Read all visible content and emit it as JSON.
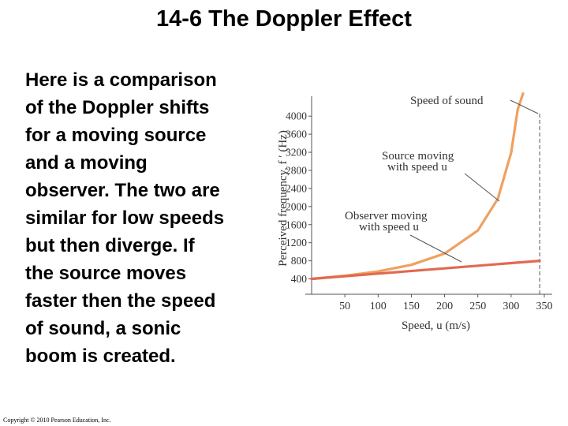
{
  "slide": {
    "title": "14-6 The Doppler Effect",
    "body_lines": [
      "Here is a comparison",
      "of the Doppler shifts",
      "for a moving source",
      "and a moving",
      "observer. The two are",
      "similar for low speeds",
      "but then diverge. If",
      "the source moves",
      "faster then the speed",
      "of sound, a sonic",
      "boom is created."
    ],
    "copyright": "Copyright © 2010 Pearson Education, Inc."
  },
  "chart_data": {
    "type": "line",
    "xlabel": "Speed, u (m/s)",
    "ylabel": "Perceived frequency, f ′ (Hz)",
    "x_ticks": [
      50,
      100,
      150,
      200,
      250,
      300,
      350
    ],
    "y_ticks": [
      400,
      800,
      1200,
      1600,
      2000,
      2400,
      2800,
      3200,
      3600,
      4000
    ],
    "xlim": [
      0,
      350
    ],
    "ylim": [
      200,
      4300
    ],
    "grid": false,
    "annotations": {
      "speed_of_sound": "Speed of sound",
      "source_line1": "Source moving",
      "source_line2": "with speed u",
      "observer_line1": "Observer moving",
      "observer_line2": "with speed u"
    },
    "speed_of_sound_x": 343,
    "series": [
      {
        "color": "#f0a060",
        "x": [
          0,
          50,
          100,
          150,
          200,
          250,
          280,
          300,
          310,
          318
        ],
        "y": [
          400,
          468,
          565,
          711,
          961,
          1470,
          2170,
          3190,
          4150,
          5490
        ]
      },
      {
        "color": "#e06a50",
        "x": [
          0,
          100,
          200,
          300,
          343
        ],
        "y": [
          400,
          517,
          633,
          750,
          800
        ]
      }
    ]
  }
}
